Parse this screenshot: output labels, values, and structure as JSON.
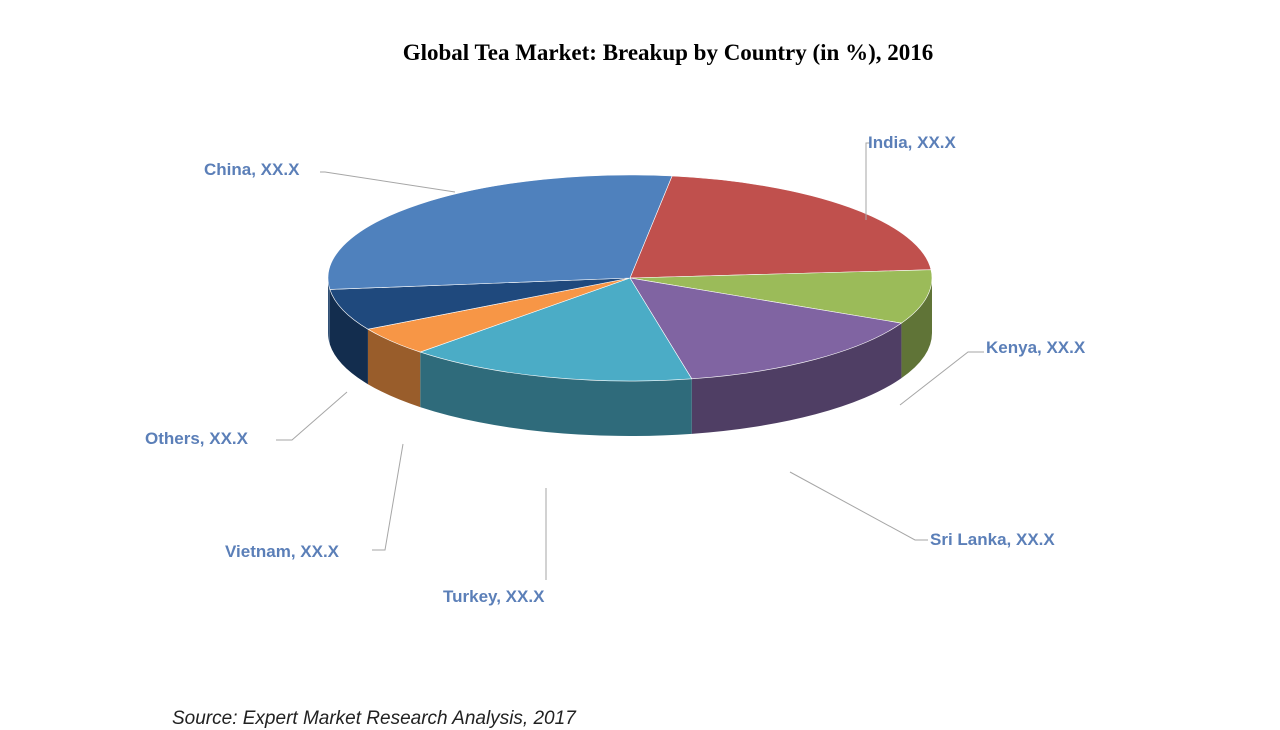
{
  "chart_data": {
    "type": "pie",
    "title": "Global Tea Market: Breakup by Country (in %), 2016",
    "series": [
      {
        "name": "India",
        "label": "India, XX.X",
        "value": 21.5,
        "color": "#c0504d"
      },
      {
        "name": "Kenya",
        "label": "Kenya, XX.X",
        "value": 8.5,
        "color": "#9bbb59"
      },
      {
        "name": "Sri Lanka",
        "label": "Sri Lanka, XX.X",
        "value": 14.5,
        "color": "#8064a2"
      },
      {
        "name": "Turkey",
        "label": "Turkey, XX.X",
        "value": 15.5,
        "color": "#4bacc6"
      },
      {
        "name": "Vietnam",
        "label": "Vietnam, XX.X",
        "value": 4.5,
        "color": "#f79646"
      },
      {
        "name": "Others",
        "label": "Others, XX.X",
        "value": 6.5,
        "color": "#1f497d"
      },
      {
        "name": "China",
        "label": "China, XX.X",
        "value": 29.0,
        "color": "#4f81bd"
      }
    ],
    "value_labels": "XX.X",
    "style": "3d-pie",
    "legend": "none"
  },
  "footer": {
    "source": "Source: Expert Market Research Analysis, 2017"
  }
}
